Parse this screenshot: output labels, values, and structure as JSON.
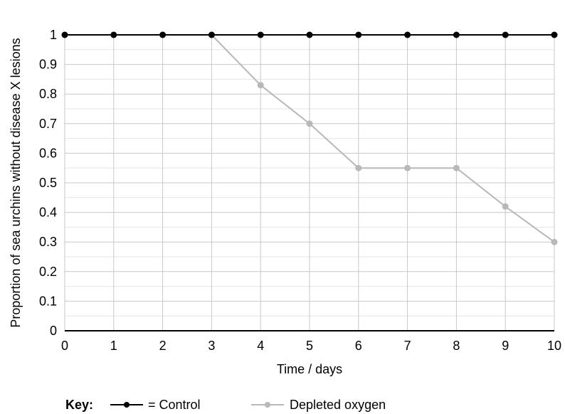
{
  "chart_data": {
    "type": "line",
    "title": "",
    "xlabel": "Time / days",
    "ylabel": "Proportion of sea urchins without disease X lesions",
    "xlim": [
      0,
      10
    ],
    "ylim": [
      0,
      1
    ],
    "x": [
      0,
      1,
      2,
      3,
      4,
      5,
      6,
      7,
      8,
      9,
      10
    ],
    "x_ticks": [
      "0",
      "1",
      "2",
      "3",
      "4",
      "5",
      "6",
      "7",
      "8",
      "9",
      "10"
    ],
    "y_ticks": [
      "0",
      "0.1",
      "0.2",
      "0.3",
      "0.4",
      "0.5",
      "0.6",
      "0.7",
      "0.8",
      "0.9",
      "1"
    ],
    "grid": true,
    "series": [
      {
        "name": "Control",
        "legend_label": "= Control",
        "color": "#000000",
        "values": [
          1,
          1,
          1,
          1,
          1,
          1,
          1,
          1,
          1,
          1,
          1
        ]
      },
      {
        "name": "Depleted oxygen",
        "legend_label": "Depleted oxygen",
        "color": "#b8b8b8",
        "values": [
          1,
          1,
          1,
          1,
          0.83,
          0.7,
          0.55,
          0.55,
          0.55,
          0.42,
          0.3
        ]
      }
    ],
    "legend": {
      "placement": "bottom",
      "title": "Key:"
    },
    "colors": {
      "grid_major": "#c8c8c8",
      "grid_minor": "#e6e6e6",
      "axis": "#000000"
    }
  }
}
